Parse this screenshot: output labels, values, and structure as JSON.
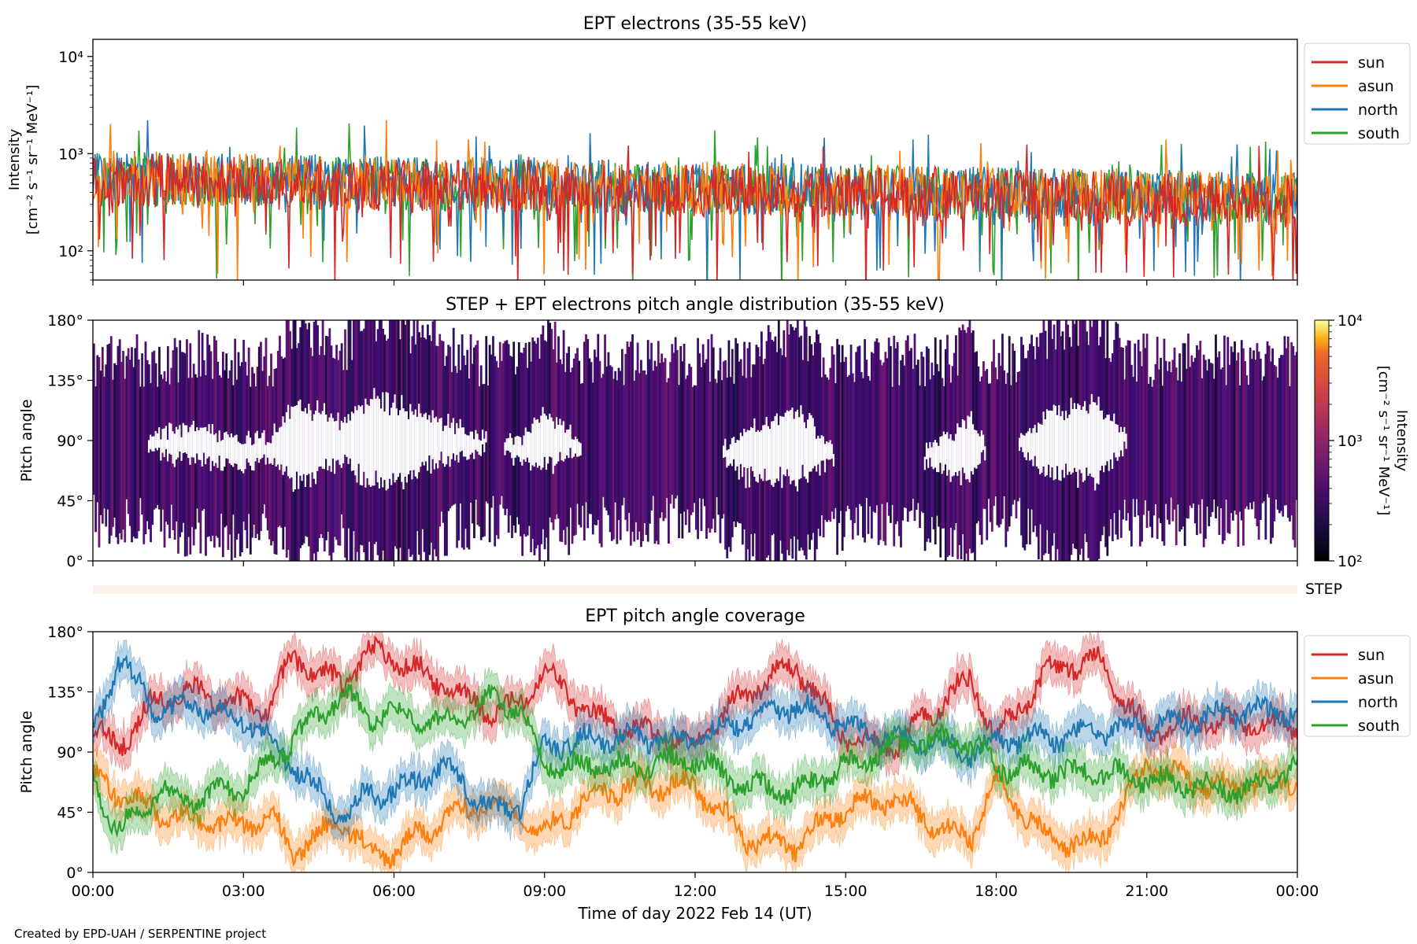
{
  "figure": {
    "footer": "Created by EPD-UAH / SERPENTINE project",
    "shared_xlabel": "Time of day 2022 Feb 14 (UT)",
    "x_tick_labels": [
      "00:00",
      "03:00",
      "06:00",
      "09:00",
      "12:00",
      "15:00",
      "18:00",
      "21:00",
      "00:00"
    ]
  },
  "chart_data": [
    {
      "type": "line",
      "title": "EPT electrons (35-55 keV)",
      "ylabel_line1": "Intensity",
      "ylabel_line2": "[cm⁻² s⁻¹ sr⁻¹ MeV⁻¹]",
      "yscale": "log",
      "ylim": [
        50,
        15000
      ],
      "y_ticks": [
        100,
        1000,
        10000
      ],
      "y_tick_labels": [
        "10²",
        "10³",
        "10⁴"
      ],
      "xlim_hours": [
        0,
        24
      ],
      "legend_position": "outside-right-top",
      "series": [
        {
          "name": "sun",
          "color": "#d62728",
          "typical": 350
        },
        {
          "name": "asun",
          "color": "#ff7f0e",
          "typical": 380
        },
        {
          "name": "north",
          "color": "#1f77b4",
          "typical": 380
        },
        {
          "name": "south",
          "color": "#2ca02c",
          "typical": 370
        }
      ]
    },
    {
      "type": "heatmap",
      "title": "STEP + EPT electrons pitch angle distribution (35-55 keV)",
      "ylabel": "Pitch angle",
      "ylim": [
        0,
        180
      ],
      "y_tick_labels": [
        "0°",
        "45°",
        "90°",
        "135°",
        "180°"
      ],
      "colorbar": {
        "scale": "log",
        "range": [
          100,
          10000
        ],
        "tick_labels": [
          "10²",
          "10³",
          "10⁴"
        ],
        "label_line1": "Intensity",
        "label_line2": "[cm⁻² s⁻¹ sr⁻¹ MeV⁻¹]",
        "colormap": "inferno"
      }
    },
    {
      "type": "heatmap",
      "strip_label": "STEP",
      "color": "#fdf0ea"
    },
    {
      "type": "line",
      "title": "EPT pitch angle coverage",
      "ylabel": "Pitch angle",
      "ylim": [
        0,
        180
      ],
      "y_tick_labels": [
        "0°",
        "45°",
        "90°",
        "135°",
        "180°"
      ],
      "legend_position": "outside-right-top",
      "series": [
        {
          "name": "sun",
          "color": "#d62728",
          "key_points": [
            [
              0,
              105
            ],
            [
              0.5,
              95
            ],
            [
              1.3,
              130
            ],
            [
              2,
              135
            ],
            [
              3,
              125
            ],
            [
              3.5,
              125
            ],
            [
              4,
              160
            ],
            [
              5,
              140
            ],
            [
              5.5,
              165
            ],
            [
              6,
              160
            ],
            [
              7,
              140
            ],
            [
              8,
              120
            ],
            [
              8.5,
              125
            ],
            [
              9,
              150
            ],
            [
              10,
              115
            ],
            [
              11,
              105
            ],
            [
              12,
              95
            ],
            [
              13,
              135
            ],
            [
              14,
              155
            ],
            [
              15,
              100
            ],
            [
              16,
              95
            ],
            [
              17,
              130
            ],
            [
              17.5,
              145
            ],
            [
              18,
              100
            ],
            [
              19,
              150
            ],
            [
              20,
              160
            ],
            [
              21,
              105
            ],
            [
              22,
              115
            ],
            [
              23,
              110
            ],
            [
              24,
              110
            ]
          ]
        },
        {
          "name": "asun",
          "color": "#ff7f0e",
          "key_points": [
            [
              0,
              70
            ],
            [
              0.5,
              60
            ],
            [
              1.3,
              45
            ],
            [
              2,
              40
            ],
            [
              3,
              35
            ],
            [
              3.5,
              45
            ],
            [
              4,
              15
            ],
            [
              5,
              40
            ],
            [
              5.5,
              15
            ],
            [
              6,
              15
            ],
            [
              7,
              40
            ],
            [
              8,
              55
            ],
            [
              8.5,
              40
            ],
            [
              9,
              30
            ],
            [
              10,
              60
            ],
            [
              11,
              65
            ],
            [
              12,
              65
            ],
            [
              13,
              25
            ],
            [
              14,
              20
            ],
            [
              15,
              50
            ],
            [
              16,
              55
            ],
            [
              17,
              30
            ],
            [
              17.5,
              25
            ],
            [
              18,
              70
            ],
            [
              19,
              25
            ],
            [
              20,
              20
            ],
            [
              21,
              80
            ],
            [
              22,
              65
            ],
            [
              23,
              65
            ],
            [
              24,
              70
            ]
          ]
        },
        {
          "name": "north",
          "color": "#1f77b4",
          "key_points": [
            [
              0,
              100
            ],
            [
              0.5,
              160
            ],
            [
              1.3,
              120
            ],
            [
              2,
              125
            ],
            [
              3,
              115
            ],
            [
              3.5,
              100
            ],
            [
              4,
              80
            ],
            [
              5,
              40
            ],
            [
              5.5,
              60
            ],
            [
              6,
              60
            ],
            [
              7,
              80
            ],
            [
              8,
              45
            ],
            [
              8.5,
              50
            ],
            [
              9,
              95
            ],
            [
              10,
              100
            ],
            [
              11,
              100
            ],
            [
              12,
              100
            ],
            [
              13,
              115
            ],
            [
              14,
              125
            ],
            [
              15,
              110
            ],
            [
              16,
              100
            ],
            [
              17,
              95
            ],
            [
              17.5,
              90
            ],
            [
              18,
              100
            ],
            [
              19,
              100
            ],
            [
              20,
              105
            ],
            [
              21,
              110
            ],
            [
              22,
              115
            ],
            [
              23,
              120
            ],
            [
              24,
              120
            ]
          ]
        },
        {
          "name": "south",
          "color": "#2ca02c",
          "key_points": [
            [
              0,
              70
            ],
            [
              0.5,
              30
            ],
            [
              1.3,
              60
            ],
            [
              2,
              55
            ],
            [
              3,
              65
            ],
            [
              3.5,
              80
            ],
            [
              4,
              100
            ],
            [
              5,
              135
            ],
            [
              5.5,
              115
            ],
            [
              6,
              120
            ],
            [
              7,
              110
            ],
            [
              8,
              130
            ],
            [
              8.5,
              125
            ],
            [
              9,
              80
            ],
            [
              10,
              80
            ],
            [
              11,
              80
            ],
            [
              12,
              85
            ],
            [
              13,
              65
            ],
            [
              14,
              60
            ],
            [
              15,
              80
            ],
            [
              16,
              95
            ],
            [
              17,
              100
            ],
            [
              17.5,
              95
            ],
            [
              18,
              80
            ],
            [
              19,
              75
            ],
            [
              20,
              75
            ],
            [
              21,
              70
            ],
            [
              22,
              65
            ],
            [
              23,
              60
            ],
            [
              24,
              80
            ]
          ]
        }
      ]
    }
  ]
}
